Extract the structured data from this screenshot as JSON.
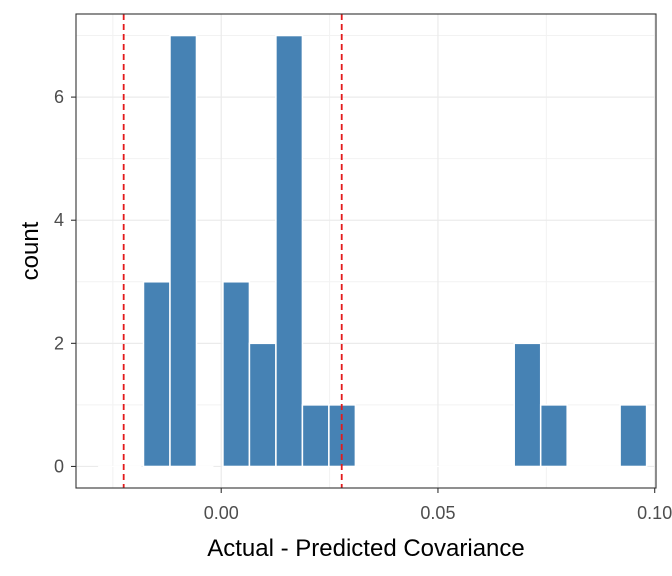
{
  "chart_data": {
    "type": "bar",
    "subtype": "histogram",
    "xlabel": "Actual - Predicted Covariance",
    "ylabel": "count",
    "xlim": [
      -0.0335,
      0.1003
    ],
    "ylim": [
      -0.35,
      7.35
    ],
    "x_ticks": [
      {
        "value": 0.0,
        "label": "0.00"
      },
      {
        "value": 0.05,
        "label": "0.05"
      },
      {
        "value": 0.1,
        "label": "0.10"
      }
    ],
    "y_ticks": [
      {
        "value": 0,
        "label": "0"
      },
      {
        "value": 2,
        "label": "2"
      },
      {
        "value": 4,
        "label": "4"
      },
      {
        "value": 6,
        "label": "6"
      }
    ],
    "bin_width": 0.00611,
    "bins": [
      {
        "x": -0.01793,
        "count": 0
      },
      {
        "x": -0.01793,
        "count": 3
      },
      {
        "x": -0.01182,
        "count": 7
      },
      {
        "x": -0.00571,
        "count": 0
      },
      {
        "x": 0.0004,
        "count": 3
      },
      {
        "x": 0.00651,
        "count": 2
      },
      {
        "x": 0.01262,
        "count": 7
      },
      {
        "x": 0.01873,
        "count": 1
      },
      {
        "x": 0.02484,
        "count": 1
      },
      {
        "x": 0.06759,
        "count": 2
      },
      {
        "x": 0.0737,
        "count": 1
      },
      {
        "x": 0.09202,
        "count": 1
      }
    ],
    "reference_lines": [
      -0.0225,
      0.0278
    ],
    "bar_color": "#4682b4",
    "reference_line_color": "#e31a1c",
    "grid": true,
    "panel_border": true
  }
}
